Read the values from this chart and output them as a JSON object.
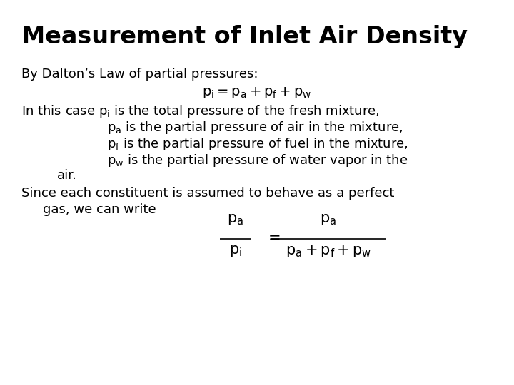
{
  "title": "Measurement of Inlet Air Density",
  "background_color": "#ffffff",
  "title_fontsize": 24,
  "title_fontweight": "bold",
  "body_fontsize": 13.0,
  "line1": "By Dalton’s Law of partial pressures:",
  "line2_math": "$p_i = p_a + p_f + p_w$",
  "line3": "In this case ",
  "line3b": " is the total pressure of the fresh mixture,",
  "line4b": " is the partial pressure of air in the mixture,",
  "line5b": " is the partial pressure of fuel in the mixture,",
  "line6b": " is the partial pressure of water vapor in the",
  "line7": "air.",
  "line8": "Since each constituent is assumed to behave as a perfect",
  "line9": "gas, we can write"
}
